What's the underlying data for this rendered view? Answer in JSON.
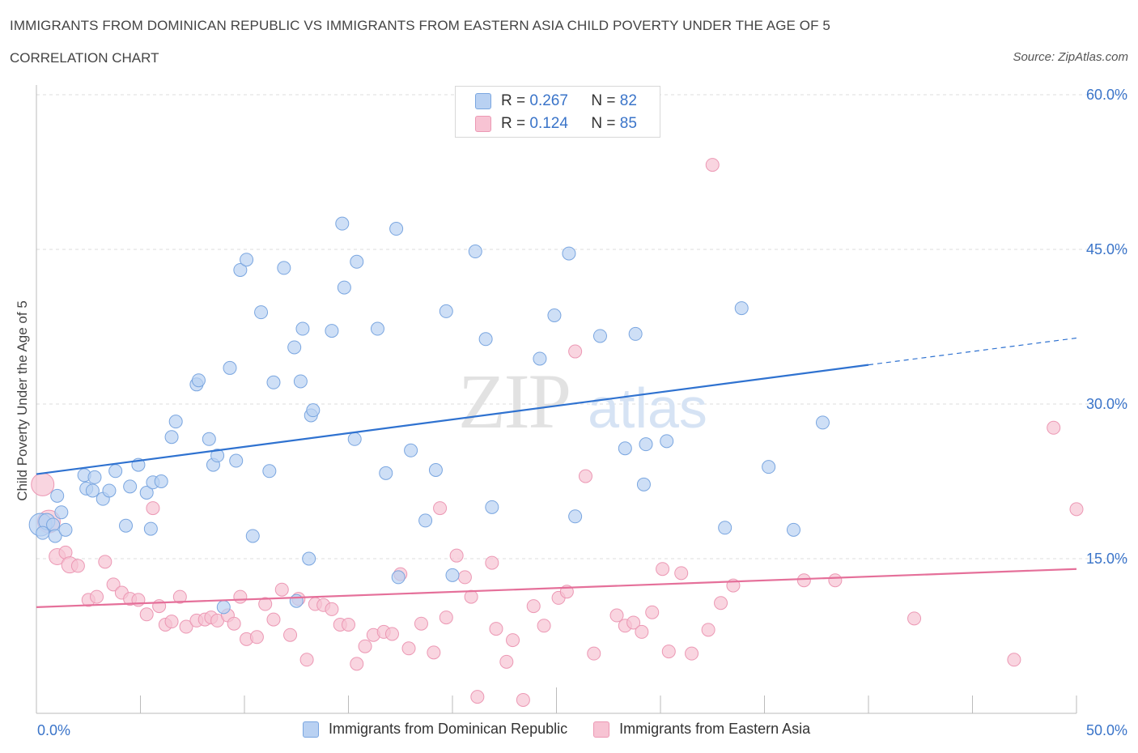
{
  "header": {
    "title": "IMMIGRANTS FROM DOMINICAN REPUBLIC VS IMMIGRANTS FROM EASTERN ASIA CHILD POVERTY UNDER THE AGE OF 5",
    "subtitle": "CORRELATION CHART",
    "source": "Source: ZipAtlas.com"
  },
  "legend": {
    "series1": {
      "r_label": "R = ",
      "r_value": "0.267",
      "n_label": "N = ",
      "n_value": "82"
    },
    "series2": {
      "r_label": "R = ",
      "r_value": "0.124",
      "n_label": "N = ",
      "n_value": "85"
    }
  },
  "watermark": {
    "zip": "ZIP",
    "atlas": "atlas"
  },
  "colors": {
    "blue_fill": "#b9d1f2",
    "blue_stroke": "#7aa6e0",
    "blue_line": "#2f72d0",
    "pink_fill": "#f7c3d3",
    "pink_stroke": "#ec98b4",
    "pink_line": "#e5709a",
    "tick_text": "#3a74c9",
    "grid": "#dddddd"
  },
  "chart_data": {
    "type": "scatter",
    "title": "IMMIGRANTS FROM DOMINICAN REPUBLIC VS IMMIGRANTS FROM EASTERN ASIA CHILD POVERTY UNDER THE AGE OF 5",
    "xlabel": "",
    "ylabel": "Child Poverty Under the Age of 5",
    "xlim": [
      0,
      50
    ],
    "ylim": [
      0,
      60
    ],
    "x_tick_labels": [
      "0.0%",
      "50.0%"
    ],
    "y_ticks": [
      15,
      30,
      45,
      60
    ],
    "y_tick_labels": [
      "15.0%",
      "30.0%",
      "45.0%",
      "60.0%"
    ],
    "series": [
      {
        "name": "Immigrants from Dominican Republic",
        "color": "blue",
        "trend": {
          "x": [
            0,
            40
          ],
          "y": [
            23.2,
            33.8
          ],
          "dashed_to": [
            50,
            36.4
          ]
        },
        "points": [
          [
            0.2,
            18.3,
            14
          ],
          [
            0.5,
            18.6,
            10
          ],
          [
            0.8,
            18.3,
            8
          ],
          [
            0.3,
            17.5,
            8
          ],
          [
            0.9,
            17.2,
            8
          ],
          [
            1.0,
            21.1,
            8
          ],
          [
            1.2,
            19.5,
            8
          ],
          [
            1.4,
            17.8,
            8
          ],
          [
            2.3,
            23.1,
            8
          ],
          [
            2.4,
            21.8,
            8
          ],
          [
            2.8,
            22.9,
            8
          ],
          [
            2.7,
            21.6,
            8
          ],
          [
            3.2,
            20.8,
            8
          ],
          [
            3.5,
            21.6,
            8
          ],
          [
            3.8,
            23.5,
            8
          ],
          [
            4.3,
            18.2,
            8
          ],
          [
            4.5,
            22.0,
            8
          ],
          [
            4.9,
            24.1,
            8
          ],
          [
            5.3,
            21.4,
            8
          ],
          [
            5.5,
            17.9,
            8
          ],
          [
            5.6,
            22.4,
            8
          ],
          [
            6.0,
            22.5,
            8
          ],
          [
            6.5,
            26.8,
            8
          ],
          [
            6.7,
            28.3,
            8
          ],
          [
            7.7,
            31.9,
            8
          ],
          [
            7.8,
            32.3,
            8
          ],
          [
            8.3,
            26.6,
            8
          ],
          [
            8.5,
            24.1,
            8
          ],
          [
            8.7,
            25.0,
            8
          ],
          [
            9.3,
            33.5,
            8
          ],
          [
            9.6,
            24.5,
            8
          ],
          [
            9.8,
            43.0,
            8
          ],
          [
            10.1,
            44.0,
            8
          ],
          [
            10.4,
            17.2,
            8
          ],
          [
            10.8,
            38.9,
            8
          ],
          [
            11.2,
            23.5,
            8
          ],
          [
            11.4,
            32.1,
            8
          ],
          [
            11.9,
            43.2,
            8
          ],
          [
            12.4,
            35.5,
            8
          ],
          [
            12.7,
            32.2,
            8
          ],
          [
            12.5,
            10.9,
            8
          ],
          [
            12.8,
            37.3,
            8
          ],
          [
            13.1,
            15.0,
            8
          ],
          [
            13.2,
            28.9,
            8
          ],
          [
            13.3,
            29.4,
            8
          ],
          [
            14.2,
            37.1,
            8
          ],
          [
            14.7,
            47.5,
            8
          ],
          [
            14.8,
            41.3,
            8
          ],
          [
            15.3,
            26.6,
            8
          ],
          [
            15.4,
            43.8,
            8
          ],
          [
            16.4,
            37.3,
            8
          ],
          [
            16.8,
            23.3,
            8
          ],
          [
            17.3,
            47.0,
            8
          ],
          [
            17.4,
            13.2,
            8
          ],
          [
            18.0,
            25.5,
            8
          ],
          [
            18.7,
            18.7,
            8
          ],
          [
            19.2,
            23.6,
            8
          ],
          [
            19.7,
            39.0,
            8
          ],
          [
            20.0,
            13.4,
            8
          ],
          [
            21.1,
            44.8,
            8
          ],
          [
            21.6,
            36.3,
            8
          ],
          [
            21.9,
            20.0,
            8
          ],
          [
            24.2,
            34.4,
            8
          ],
          [
            24.9,
            38.6,
            8
          ],
          [
            25.6,
            44.6,
            8
          ],
          [
            25.9,
            19.1,
            8
          ],
          [
            27.1,
            36.6,
            8
          ],
          [
            28.3,
            25.7,
            8
          ],
          [
            28.8,
            36.8,
            8
          ],
          [
            29.2,
            22.2,
            8
          ],
          [
            29.3,
            26.1,
            8
          ],
          [
            30.3,
            26.4,
            8
          ],
          [
            33.1,
            18.0,
            8
          ],
          [
            33.9,
            39.3,
            8
          ],
          [
            35.2,
            23.9,
            8
          ],
          [
            36.4,
            17.8,
            8
          ],
          [
            37.8,
            28.2,
            8
          ],
          [
            8.0,
            18.4,
            0.01
          ],
          [
            5.4,
            21.4,
            0.01
          ],
          [
            11.0,
            17.4,
            0.01
          ],
          [
            9.0,
            10.3,
            8
          ],
          [
            3.5,
            21.8,
            0.01
          ]
        ]
      },
      {
        "name": "Immigrants from Eastern Asia",
        "color": "pink",
        "trend": {
          "x": [
            0,
            50
          ],
          "y": [
            10.3,
            14.0
          ]
        },
        "points": [
          [
            0.3,
            22.2,
            14
          ],
          [
            0.6,
            18.6,
            14
          ],
          [
            1.0,
            15.2,
            10
          ],
          [
            1.4,
            15.6,
            8
          ],
          [
            1.6,
            14.4,
            10
          ],
          [
            2.0,
            14.3,
            8
          ],
          [
            2.5,
            11.0,
            8
          ],
          [
            2.9,
            11.3,
            8
          ],
          [
            3.3,
            14.7,
            8
          ],
          [
            3.7,
            12.5,
            8
          ],
          [
            4.1,
            11.7,
            8
          ],
          [
            4.5,
            11.1,
            8
          ],
          [
            4.9,
            11.0,
            8
          ],
          [
            5.3,
            9.6,
            8
          ],
          [
            5.6,
            19.9,
            8
          ],
          [
            5.9,
            10.4,
            8
          ],
          [
            6.2,
            8.6,
            8
          ],
          [
            6.5,
            8.9,
            8
          ],
          [
            6.9,
            11.3,
            8
          ],
          [
            7.2,
            8.4,
            8
          ],
          [
            7.7,
            9.0,
            8
          ],
          [
            8.1,
            9.1,
            8
          ],
          [
            8.4,
            9.3,
            8
          ],
          [
            8.7,
            9.0,
            8
          ],
          [
            9.2,
            9.5,
            8
          ],
          [
            9.5,
            8.7,
            8
          ],
          [
            9.8,
            11.3,
            8
          ],
          [
            10.1,
            7.2,
            8
          ],
          [
            10.6,
            7.4,
            8
          ],
          [
            11.0,
            10.6,
            8
          ],
          [
            11.4,
            9.1,
            8
          ],
          [
            11.8,
            12.0,
            8
          ],
          [
            12.2,
            7.6,
            8
          ],
          [
            12.6,
            11.1,
            8
          ],
          [
            13.0,
            5.2,
            8
          ],
          [
            13.4,
            10.6,
            8
          ],
          [
            13.8,
            10.5,
            8
          ],
          [
            14.2,
            10.1,
            8
          ],
          [
            14.6,
            8.6,
            8
          ],
          [
            15.0,
            8.6,
            8
          ],
          [
            15.4,
            4.8,
            8
          ],
          [
            15.8,
            6.5,
            8
          ],
          [
            16.2,
            7.6,
            8
          ],
          [
            16.7,
            7.9,
            8
          ],
          [
            17.1,
            7.7,
            8
          ],
          [
            17.5,
            13.5,
            8
          ],
          [
            17.9,
            6.3,
            8
          ],
          [
            18.5,
            8.7,
            8
          ],
          [
            19.1,
            5.9,
            8
          ],
          [
            19.4,
            19.9,
            8
          ],
          [
            19.7,
            9.3,
            8
          ],
          [
            20.2,
            15.3,
            8
          ],
          [
            20.6,
            13.2,
            8
          ],
          [
            20.9,
            11.3,
            8
          ],
          [
            21.2,
            1.6,
            8
          ],
          [
            21.9,
            14.6,
            8
          ],
          [
            22.1,
            8.2,
            8
          ],
          [
            22.6,
            5.0,
            8
          ],
          [
            22.9,
            7.1,
            8
          ],
          [
            23.4,
            1.3,
            8
          ],
          [
            23.9,
            10.4,
            8
          ],
          [
            24.4,
            8.5,
            8
          ],
          [
            25.1,
            11.2,
            8
          ],
          [
            25.5,
            11.8,
            8
          ],
          [
            25.9,
            35.1,
            8
          ],
          [
            26.4,
            23.0,
            8
          ],
          [
            26.8,
            5.8,
            8
          ],
          [
            27.9,
            9.5,
            8
          ],
          [
            28.3,
            8.5,
            8
          ],
          [
            28.7,
            8.8,
            8
          ],
          [
            29.1,
            7.9,
            8
          ],
          [
            29.6,
            9.8,
            8
          ],
          [
            30.1,
            14.0,
            8
          ],
          [
            30.4,
            6.0,
            8
          ],
          [
            31.0,
            13.6,
            8
          ],
          [
            31.5,
            5.8,
            8
          ],
          [
            32.3,
            8.1,
            8
          ],
          [
            32.5,
            53.2,
            8
          ],
          [
            32.9,
            10.7,
            8
          ],
          [
            33.5,
            12.4,
            8
          ],
          [
            36.9,
            12.9,
            8
          ],
          [
            38.4,
            12.9,
            8
          ],
          [
            42.2,
            9.2,
            8
          ],
          [
            47.0,
            5.2,
            8
          ],
          [
            48.9,
            27.7,
            8
          ],
          [
            50.0,
            19.8,
            8
          ]
        ]
      }
    ]
  },
  "bottom_legend": {
    "item1": "Immigrants from Dominican Republic",
    "item2": "Immigrants from Eastern Asia"
  }
}
